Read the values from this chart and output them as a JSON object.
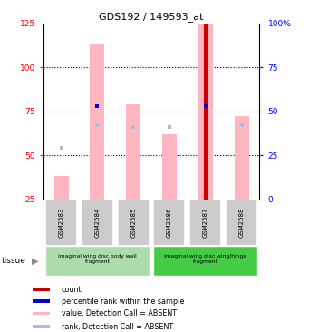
{
  "title": "GDS192 / 149593_at",
  "samples": [
    "GSM2583",
    "GSM2584",
    "GSM2585",
    "GSM2586",
    "GSM2587",
    "GSM2588"
  ],
  "ylim_left": [
    25,
    125
  ],
  "ylim_right": [
    0,
    100
  ],
  "yticks_left": [
    25,
    50,
    75,
    100,
    125
  ],
  "yticks_right": [
    0,
    25,
    50,
    75,
    100
  ],
  "yticklabels_right": [
    "0",
    "25",
    "50",
    "75",
    "100%"
  ],
  "value_absent": [
    38,
    113,
    79,
    62,
    125,
    72
  ],
  "rank_absent": [
    54,
    67,
    66,
    66,
    71,
    67
  ],
  "percentile_rank": [
    null,
    78,
    null,
    null,
    78,
    null
  ],
  "count_values": [
    null,
    null,
    null,
    null,
    125,
    null
  ],
  "pink_color": "#FFB6C1",
  "lightblue_color": "#AABBDD",
  "red_color": "#CC0000",
  "blue_color": "#0000CC",
  "bar_bottom": 25,
  "tissue_group1_label": "imaginal wing disc body wall\nfragment",
  "tissue_group2_label": "imaginal wing disc wing/hinge\nfragment",
  "tissue_color1": "#AADDAA",
  "tissue_color2": "#44CC44",
  "legend_items": [
    {
      "color": "#CC0000",
      "label": "count"
    },
    {
      "color": "#0000CC",
      "label": "percentile rank within the sample"
    },
    {
      "color": "#FFB6C1",
      "label": "value, Detection Call = ABSENT"
    },
    {
      "color": "#AABBDD",
      "label": "rank, Detection Call = ABSENT"
    }
  ]
}
